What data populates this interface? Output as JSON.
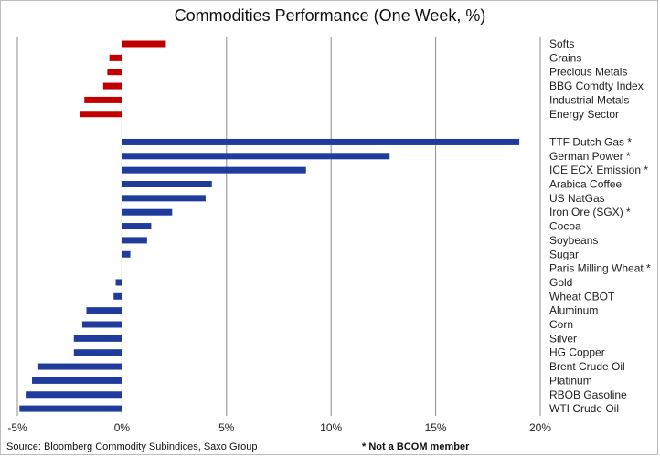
{
  "chart_data": {
    "type": "bar",
    "orientation": "horizontal",
    "title": "Commodities Performance (One Week, %)",
    "xlabel": "",
    "ylabel": "",
    "xlim": [
      -5,
      20
    ],
    "xticks": [
      "-5%",
      "0%",
      "5%",
      "10%",
      "15%",
      "20%"
    ],
    "xtick_values": [
      -5,
      0,
      5,
      10,
      15,
      20
    ],
    "grid": "vertical",
    "colors": {
      "index_group": "#c00000",
      "commodity": "#1f3c9c",
      "grid": "#8c8c8c"
    },
    "groups": [
      {
        "color": "#c00000",
        "categories": [
          "Softs",
          "Grains",
          "Precious Metals",
          "BBG Comdty Index",
          "Industrial Metals",
          "Energy Sector"
        ],
        "values": [
          2.1,
          -0.6,
          -0.7,
          -0.9,
          -1.8,
          -2.0
        ]
      },
      {
        "color": "#1f3c9c",
        "categories": [
          "TTF Dutch Gas *",
          "German Power *",
          "ICE ECX Emission *",
          "Arabica Coffee",
          "US NatGas",
          "Iron Ore (SGX) *",
          "Cocoa",
          "Soybeans",
          "Sugar",
          "Paris Milling Wheat *",
          "Gold",
          "Wheat CBOT",
          "Aluminum",
          "Corn",
          "Silver",
          "HG Copper",
          "Brent Crude Oil",
          "Platinum",
          "RBOB Gasoline",
          "WTI Crude Oil"
        ],
        "values": [
          19.0,
          12.8,
          8.8,
          4.3,
          4.0,
          2.4,
          1.4,
          1.2,
          0.4,
          0.0,
          -0.3,
          -0.4,
          -1.7,
          -1.9,
          -2.3,
          -2.3,
          -4.0,
          -4.3,
          -4.6,
          -4.9
        ]
      }
    ]
  },
  "footer": {
    "source": "Source: Bloomberg Commodity Subindices, Saxo Group",
    "note": "* Not a BCOM member"
  }
}
